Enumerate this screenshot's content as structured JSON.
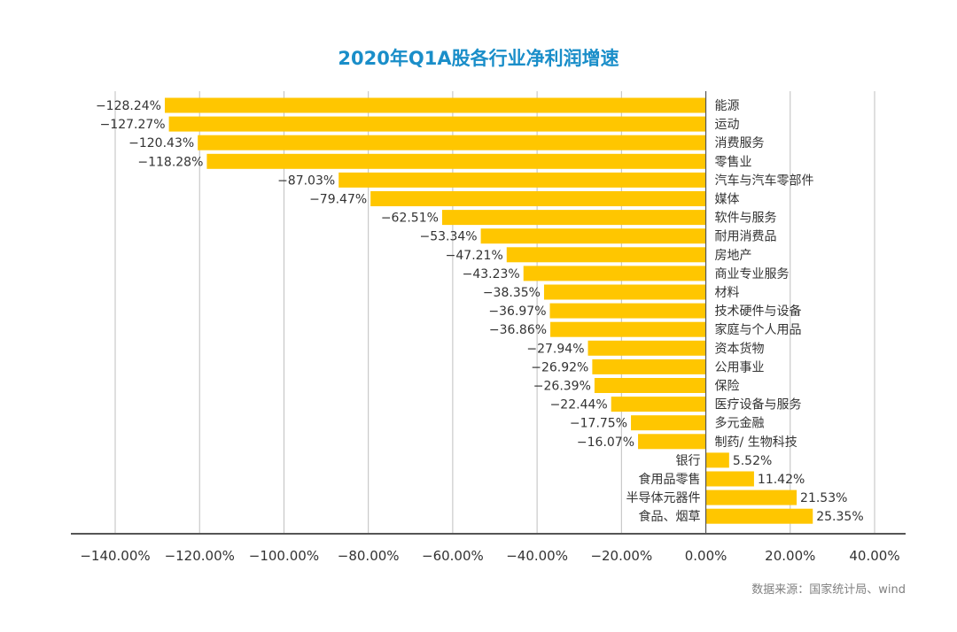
{
  "chart_data": {
    "type": "bar",
    "orientation": "horizontal",
    "title": "2020年Q1A股各行业净利润增速",
    "categories": [
      "能源",
      "运动",
      "消费服务",
      "零售业",
      "汽车与汽车零部件",
      "媒体",
      "软件与服务",
      "耐用消费品",
      "房地产",
      "商业专业服务",
      "材料",
      "技术硬件与设备",
      "家庭与个人用品",
      "资本货物",
      "公用事业",
      "保险",
      "医疗设备与服务",
      "多元金融",
      "制药/ 生物科技",
      "银行",
      "食用品零售",
      "半导体元器件",
      "食品、烟草"
    ],
    "values": [
      -128.24,
      -127.27,
      -120.43,
      -118.28,
      -87.03,
      -79.47,
      -62.51,
      -53.34,
      -47.21,
      -43.23,
      -38.35,
      -36.97,
      -36.86,
      -27.94,
      -26.92,
      -26.39,
      -22.44,
      -17.75,
      -16.07,
      5.52,
      11.42,
      21.53,
      25.35
    ],
    "value_labels": [
      "−128.24%",
      "−127.27%",
      "−120.43%",
      "−118.28%",
      "−87.03%",
      "−79.47%",
      "−62.51%",
      "−53.34%",
      "−47.21%",
      "−43.23%",
      "−38.35%",
      "−36.97%",
      "−36.86%",
      "−27.94%",
      "−26.92%",
      "−26.39%",
      "−22.44%",
      "−17.75%",
      "−16.07%",
      "5.52%",
      "11.42%",
      "21.53%",
      "25.35%"
    ],
    "xlim": [
      -140,
      40
    ],
    "xticks": [
      -140,
      -120,
      -100,
      -80,
      -60,
      -40,
      -20,
      0,
      20,
      40
    ],
    "xtick_labels": [
      "−140.00%",
      "−120.00%",
      "−100.00%",
      "−80.00%",
      "−60.00%",
      "−40.00%",
      "−20.00%",
      "0.00%",
      "20.00%",
      "40.00%"
    ],
    "grid": "vertical",
    "bar_color": "#FFC600",
    "grid_color": "#bfbfbf"
  },
  "source": "数据来源：国家统计局、wind"
}
